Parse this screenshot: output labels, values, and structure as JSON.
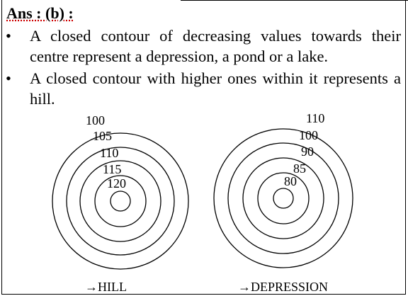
{
  "answer": "Ans :  (b) :",
  "bullets": [
    "A closed contour of decreasing values  towards their centre represent a depression, a pond or a lake.",
    "A closed contour with higher ones within it represents a hill."
  ],
  "diagrams": [
    {
      "labels": [
        "100",
        "105",
        "110",
        "115",
        "120"
      ],
      "caption": "→HILL"
    },
    {
      "labels": [
        "110",
        "100",
        "90",
        "85",
        "80"
      ],
      "caption": "→DEPRESSION"
    }
  ]
}
